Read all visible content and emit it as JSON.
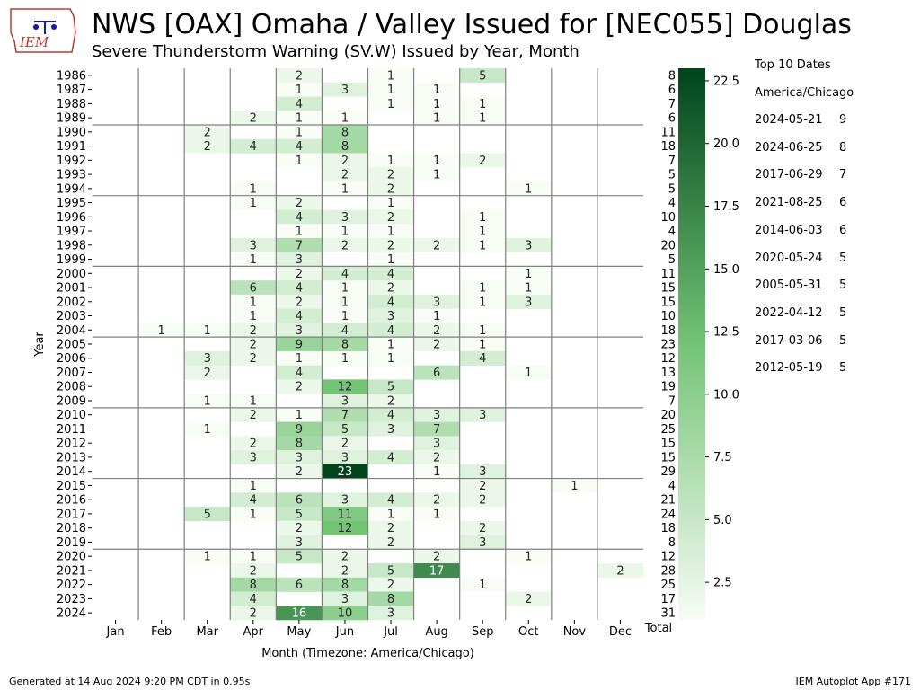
{
  "header": {
    "title": "NWS [OAX] Omaha / Valley Issued for [NEC055] Douglas",
    "subtitle": "Severe Thunderstorm Warning (SV.W) Issued by Year, Month",
    "logo_text": "IEM"
  },
  "side_panel": {
    "heading": "Top 10 Dates",
    "timezone": "America/Chicago",
    "top_dates": [
      {
        "date": "2024-05-21",
        "count": "9"
      },
      {
        "date": "2024-06-25",
        "count": "8"
      },
      {
        "date": "2017-06-29",
        "count": "7"
      },
      {
        "date": "2021-08-25",
        "count": "6"
      },
      {
        "date": "2014-06-03",
        "count": "6"
      },
      {
        "date": "2020-05-24",
        "count": "5"
      },
      {
        "date": "2005-05-31",
        "count": "5"
      },
      {
        "date": "2022-04-12",
        "count": "5"
      },
      {
        "date": "2017-03-06",
        "count": "5"
      },
      {
        "date": "2012-05-19",
        "count": "5"
      }
    ]
  },
  "footer": {
    "left": "Generated at 14 Aug 2024 9:20 PM CDT in 0.95s",
    "right": "IEM Autoplot App #171"
  },
  "colors": {
    "cmap_low": "#f7fcf5",
    "cmap_high": "#00441b",
    "grid_line": "#808080"
  },
  "chart_data": {
    "type": "heatmap",
    "xlabel": "Month (Timezone: America/Chicago)",
    "ylabel": "Year",
    "total_label": "Total",
    "months": [
      "Jan",
      "Feb",
      "Mar",
      "Apr",
      "May",
      "Jun",
      "Jul",
      "Aug",
      "Sep",
      "Oct",
      "Nov",
      "Dec"
    ],
    "years": [
      "1986",
      "1987",
      "1988",
      "1989",
      "1990",
      "1991",
      "1992",
      "1993",
      "1994",
      "1995",
      "1996",
      "1997",
      "1998",
      "1999",
      "2000",
      "2001",
      "2002",
      "2003",
      "2004",
      "2005",
      "2006",
      "2007",
      "2008",
      "2009",
      "2010",
      "2011",
      "2012",
      "2013",
      "2014",
      "2015",
      "2016",
      "2017",
      "2018",
      "2019",
      "2020",
      "2021",
      "2022",
      "2023",
      "2024"
    ],
    "values": [
      [
        null,
        null,
        null,
        null,
        2,
        null,
        1,
        null,
        5,
        null,
        null,
        null
      ],
      [
        null,
        null,
        null,
        null,
        1,
        3,
        1,
        1,
        null,
        null,
        null,
        null
      ],
      [
        null,
        null,
        null,
        null,
        4,
        null,
        1,
        1,
        1,
        null,
        null,
        null
      ],
      [
        null,
        null,
        null,
        2,
        1,
        1,
        null,
        1,
        1,
        null,
        null,
        null
      ],
      [
        null,
        null,
        2,
        null,
        1,
        8,
        null,
        null,
        null,
        null,
        null,
        null
      ],
      [
        null,
        null,
        2,
        4,
        4,
        8,
        null,
        null,
        null,
        null,
        null,
        null
      ],
      [
        null,
        null,
        null,
        null,
        1,
        2,
        1,
        1,
        2,
        null,
        null,
        null
      ],
      [
        null,
        null,
        null,
        null,
        null,
        2,
        2,
        1,
        null,
        null,
        null,
        null
      ],
      [
        null,
        null,
        null,
        1,
        null,
        1,
        2,
        null,
        null,
        1,
        null,
        null
      ],
      [
        null,
        null,
        null,
        1,
        2,
        null,
        1,
        null,
        null,
        null,
        null,
        null
      ],
      [
        null,
        null,
        null,
        null,
        4,
        3,
        2,
        null,
        1,
        null,
        null,
        null
      ],
      [
        null,
        null,
        null,
        null,
        1,
        1,
        1,
        null,
        1,
        null,
        null,
        null
      ],
      [
        null,
        null,
        null,
        3,
        7,
        2,
        2,
        2,
        1,
        3,
        null,
        null
      ],
      [
        null,
        null,
        null,
        1,
        3,
        null,
        1,
        null,
        null,
        null,
        null,
        null
      ],
      [
        null,
        null,
        null,
        null,
        2,
        4,
        4,
        null,
        null,
        1,
        null,
        null
      ],
      [
        null,
        null,
        null,
        6,
        4,
        1,
        2,
        null,
        1,
        1,
        null,
        null
      ],
      [
        null,
        null,
        null,
        1,
        2,
        1,
        4,
        3,
        1,
        3,
        null,
        null
      ],
      [
        null,
        null,
        null,
        1,
        4,
        1,
        3,
        1,
        null,
        null,
        null,
        null
      ],
      [
        null,
        1,
        1,
        2,
        3,
        4,
        4,
        2,
        1,
        null,
        null,
        null
      ],
      [
        null,
        null,
        null,
        2,
        9,
        8,
        1,
        2,
        1,
        null,
        null,
        null
      ],
      [
        null,
        null,
        3,
        2,
        1,
        1,
        1,
        null,
        4,
        null,
        null,
        null
      ],
      [
        null,
        null,
        2,
        null,
        4,
        null,
        null,
        6,
        null,
        1,
        null,
        null
      ],
      [
        null,
        null,
        null,
        null,
        2,
        12,
        5,
        null,
        null,
        null,
        null,
        null
      ],
      [
        null,
        null,
        1,
        1,
        null,
        3,
        2,
        null,
        null,
        null,
        null,
        null
      ],
      [
        null,
        null,
        null,
        2,
        1,
        7,
        4,
        3,
        3,
        null,
        null,
        null
      ],
      [
        null,
        null,
        1,
        null,
        9,
        5,
        3,
        7,
        null,
        null,
        null,
        null
      ],
      [
        null,
        null,
        null,
        2,
        8,
        2,
        null,
        3,
        null,
        null,
        null,
        null
      ],
      [
        null,
        null,
        null,
        3,
        3,
        3,
        4,
        2,
        null,
        null,
        null,
        null
      ],
      [
        null,
        null,
        null,
        null,
        2,
        23,
        null,
        1,
        3,
        null,
        null,
        null
      ],
      [
        null,
        null,
        null,
        1,
        null,
        null,
        null,
        null,
        2,
        null,
        1,
        null
      ],
      [
        null,
        null,
        null,
        4,
        6,
        3,
        4,
        2,
        2,
        null,
        null,
        null
      ],
      [
        null,
        null,
        5,
        1,
        5,
        11,
        1,
        1,
        null,
        null,
        null,
        null
      ],
      [
        null,
        null,
        null,
        null,
        2,
        12,
        2,
        null,
        2,
        null,
        null,
        null
      ],
      [
        null,
        null,
        null,
        null,
        3,
        null,
        2,
        null,
        3,
        null,
        null,
        null
      ],
      [
        null,
        null,
        1,
        1,
        5,
        2,
        null,
        2,
        null,
        1,
        null,
        null
      ],
      [
        null,
        null,
        null,
        2,
        null,
        2,
        5,
        17,
        null,
        null,
        null,
        2
      ],
      [
        null,
        null,
        null,
        8,
        6,
        8,
        2,
        null,
        1,
        null,
        null,
        null
      ],
      [
        null,
        null,
        null,
        4,
        null,
        3,
        8,
        null,
        null,
        2,
        null,
        null
      ],
      [
        null,
        null,
        null,
        2,
        16,
        10,
        3,
        null,
        null,
        null,
        null,
        null
      ]
    ],
    "totals": [
      8,
      6,
      7,
      6,
      11,
      18,
      7,
      5,
      5,
      4,
      10,
      4,
      20,
      5,
      11,
      15,
      15,
      10,
      18,
      23,
      12,
      13,
      19,
      7,
      20,
      25,
      15,
      15,
      29,
      4,
      21,
      24,
      18,
      8,
      12,
      28,
      25,
      17,
      31
    ],
    "colorbar": {
      "ticks": [
        2.5,
        5.0,
        7.5,
        10.0,
        12.5,
        15.0,
        17.5,
        20.0,
        22.5
      ],
      "tick_labels": [
        "2.5",
        "5.0",
        "7.5",
        "10.0",
        "12.5",
        "15.0",
        "17.5",
        "20.0",
        "22.5"
      ],
      "range": [
        1,
        23
      ]
    },
    "separator_after_years": [
      "1989",
      "1994",
      "1999",
      "2004",
      "2009",
      "2014",
      "2019"
    ]
  }
}
